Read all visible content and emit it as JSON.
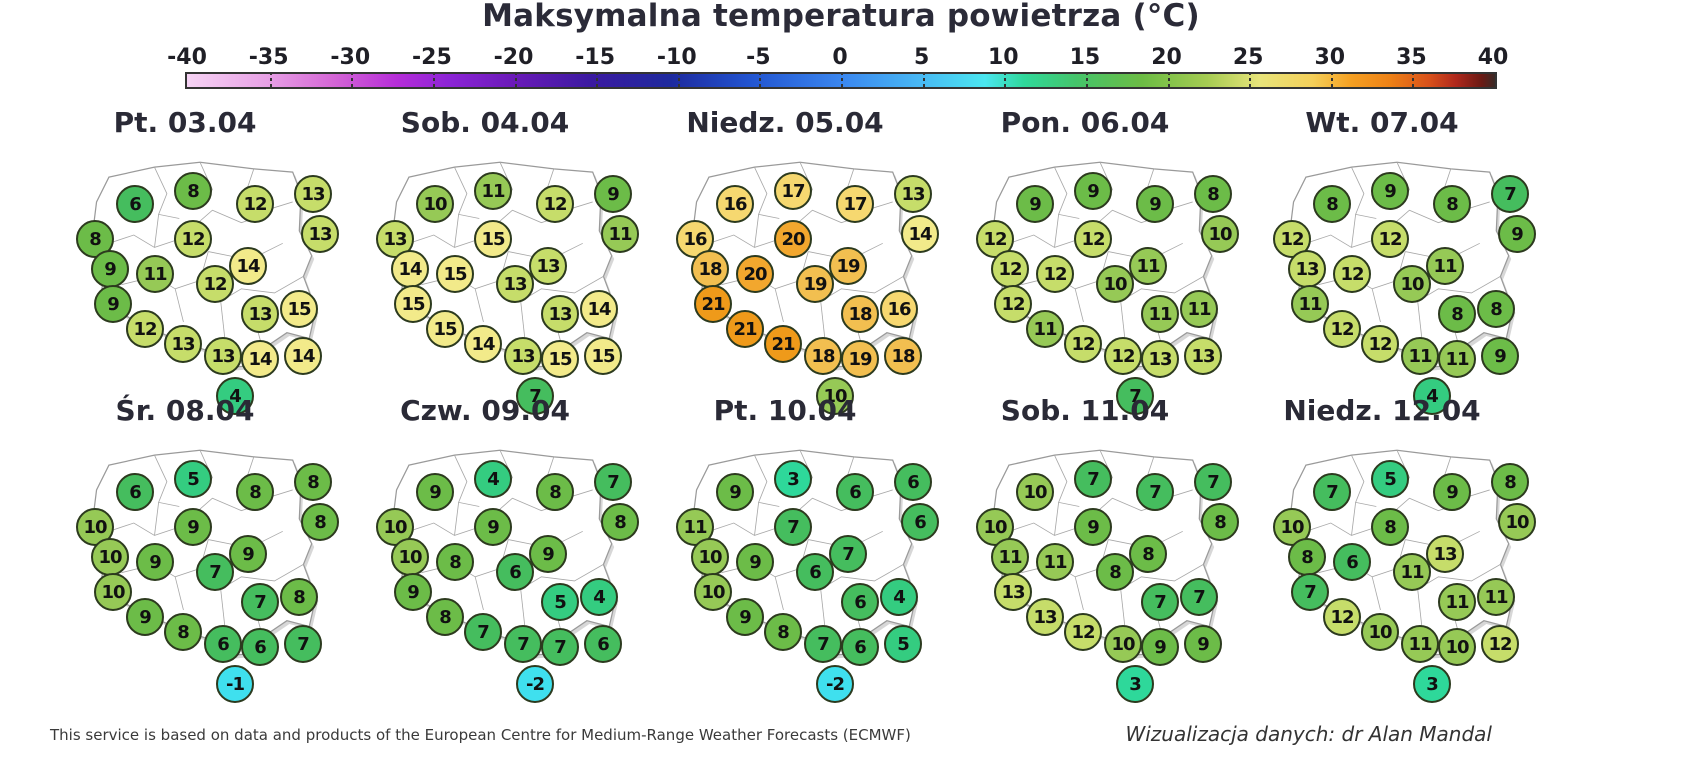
{
  "title": "Maksymalna temperatura powietrza (°C)",
  "legend": {
    "ticks": [
      "-40",
      "-35",
      "-30",
      "-25",
      "-20",
      "-15",
      "-10",
      "-5",
      "0",
      "5",
      "10",
      "15",
      "20",
      "25",
      "30",
      "35",
      "40"
    ],
    "min": -40,
    "max": 40
  },
  "footer": {
    "source": "This service is based on data and products of the European Centre for Medium-Range Weather Forecasts (ECMWF)",
    "credit": "Wizualizacja danych: dr Alan Mandal"
  },
  "chart_data": {
    "type": "heatmap",
    "title": "Maksymalna temperatura powietrza (°C)",
    "units": "°C",
    "colorscale_range": [
      -40,
      40
    ],
    "station_order": [
      "nw_coast",
      "north_coast",
      "northeast",
      "west_1",
      "center_north",
      "east_1",
      "west_2",
      "west_central",
      "center",
      "east_2",
      "west_3",
      "center_south",
      "southeast",
      "sw_1",
      "sw_2",
      "south_1",
      "south_2",
      "southeast_2",
      "south_3",
      "mountain"
    ],
    "days": [
      {
        "label": "Pt. 03.04",
        "values": [
          8,
          6,
          8,
          12,
          12,
          13,
          9,
          11,
          14,
          13,
          9,
          12,
          15,
          12,
          13,
          13,
          14,
          14,
          13,
          4
        ]
      },
      {
        "label": "Sob. 04.04",
        "values": [
          13,
          10,
          11,
          12,
          15,
          9,
          14,
          15,
          13,
          11,
          15,
          13,
          14,
          15,
          14,
          13,
          15,
          15,
          13,
          7
        ]
      },
      {
        "label": "Niedz. 05.04",
        "values": [
          16,
          16,
          17,
          17,
          20,
          13,
          18,
          20,
          19,
          14,
          21,
          19,
          16,
          21,
          21,
          18,
          19,
          18,
          18,
          10
        ]
      },
      {
        "label": "Pon. 06.04",
        "values": [
          12,
          9,
          9,
          9,
          12,
          8,
          12,
          12,
          11,
          10,
          12,
          10,
          11,
          11,
          12,
          12,
          13,
          13,
          11,
          7
        ]
      },
      {
        "label": "Wt. 07.04",
        "values": [
          12,
          8,
          9,
          8,
          12,
          7,
          13,
          12,
          11,
          9,
          11,
          10,
          8,
          12,
          12,
          11,
          11,
          9,
          8,
          4
        ]
      },
      {
        "label": "Śr. 08.04",
        "values": [
          10,
          6,
          5,
          8,
          9,
          8,
          10,
          9,
          9,
          8,
          10,
          7,
          8,
          9,
          8,
          6,
          6,
          7,
          7,
          -1
        ]
      },
      {
        "label": "Czw. 09.04",
        "values": [
          10,
          9,
          4,
          8,
          9,
          7,
          10,
          8,
          9,
          8,
          9,
          6,
          4,
          8,
          7,
          7,
          7,
          6,
          5,
          -2
        ]
      },
      {
        "label": "Pt. 10.04",
        "values": [
          11,
          9,
          3,
          6,
          7,
          6,
          10,
          9,
          7,
          6,
          10,
          6,
          4,
          9,
          8,
          7,
          6,
          5,
          6,
          -2
        ]
      },
      {
        "label": "Sob. 11.04",
        "values": [
          10,
          10,
          7,
          7,
          9,
          7,
          11,
          11,
          8,
          8,
          13,
          8,
          7,
          13,
          12,
          10,
          9,
          9,
          7,
          3
        ]
      },
      {
        "label": "Niedz. 12.04",
        "values": [
          10,
          7,
          5,
          9,
          8,
          8,
          8,
          6,
          13,
          10,
          7,
          11,
          11,
          12,
          10,
          11,
          10,
          12,
          11,
          3
        ]
      }
    ]
  }
}
